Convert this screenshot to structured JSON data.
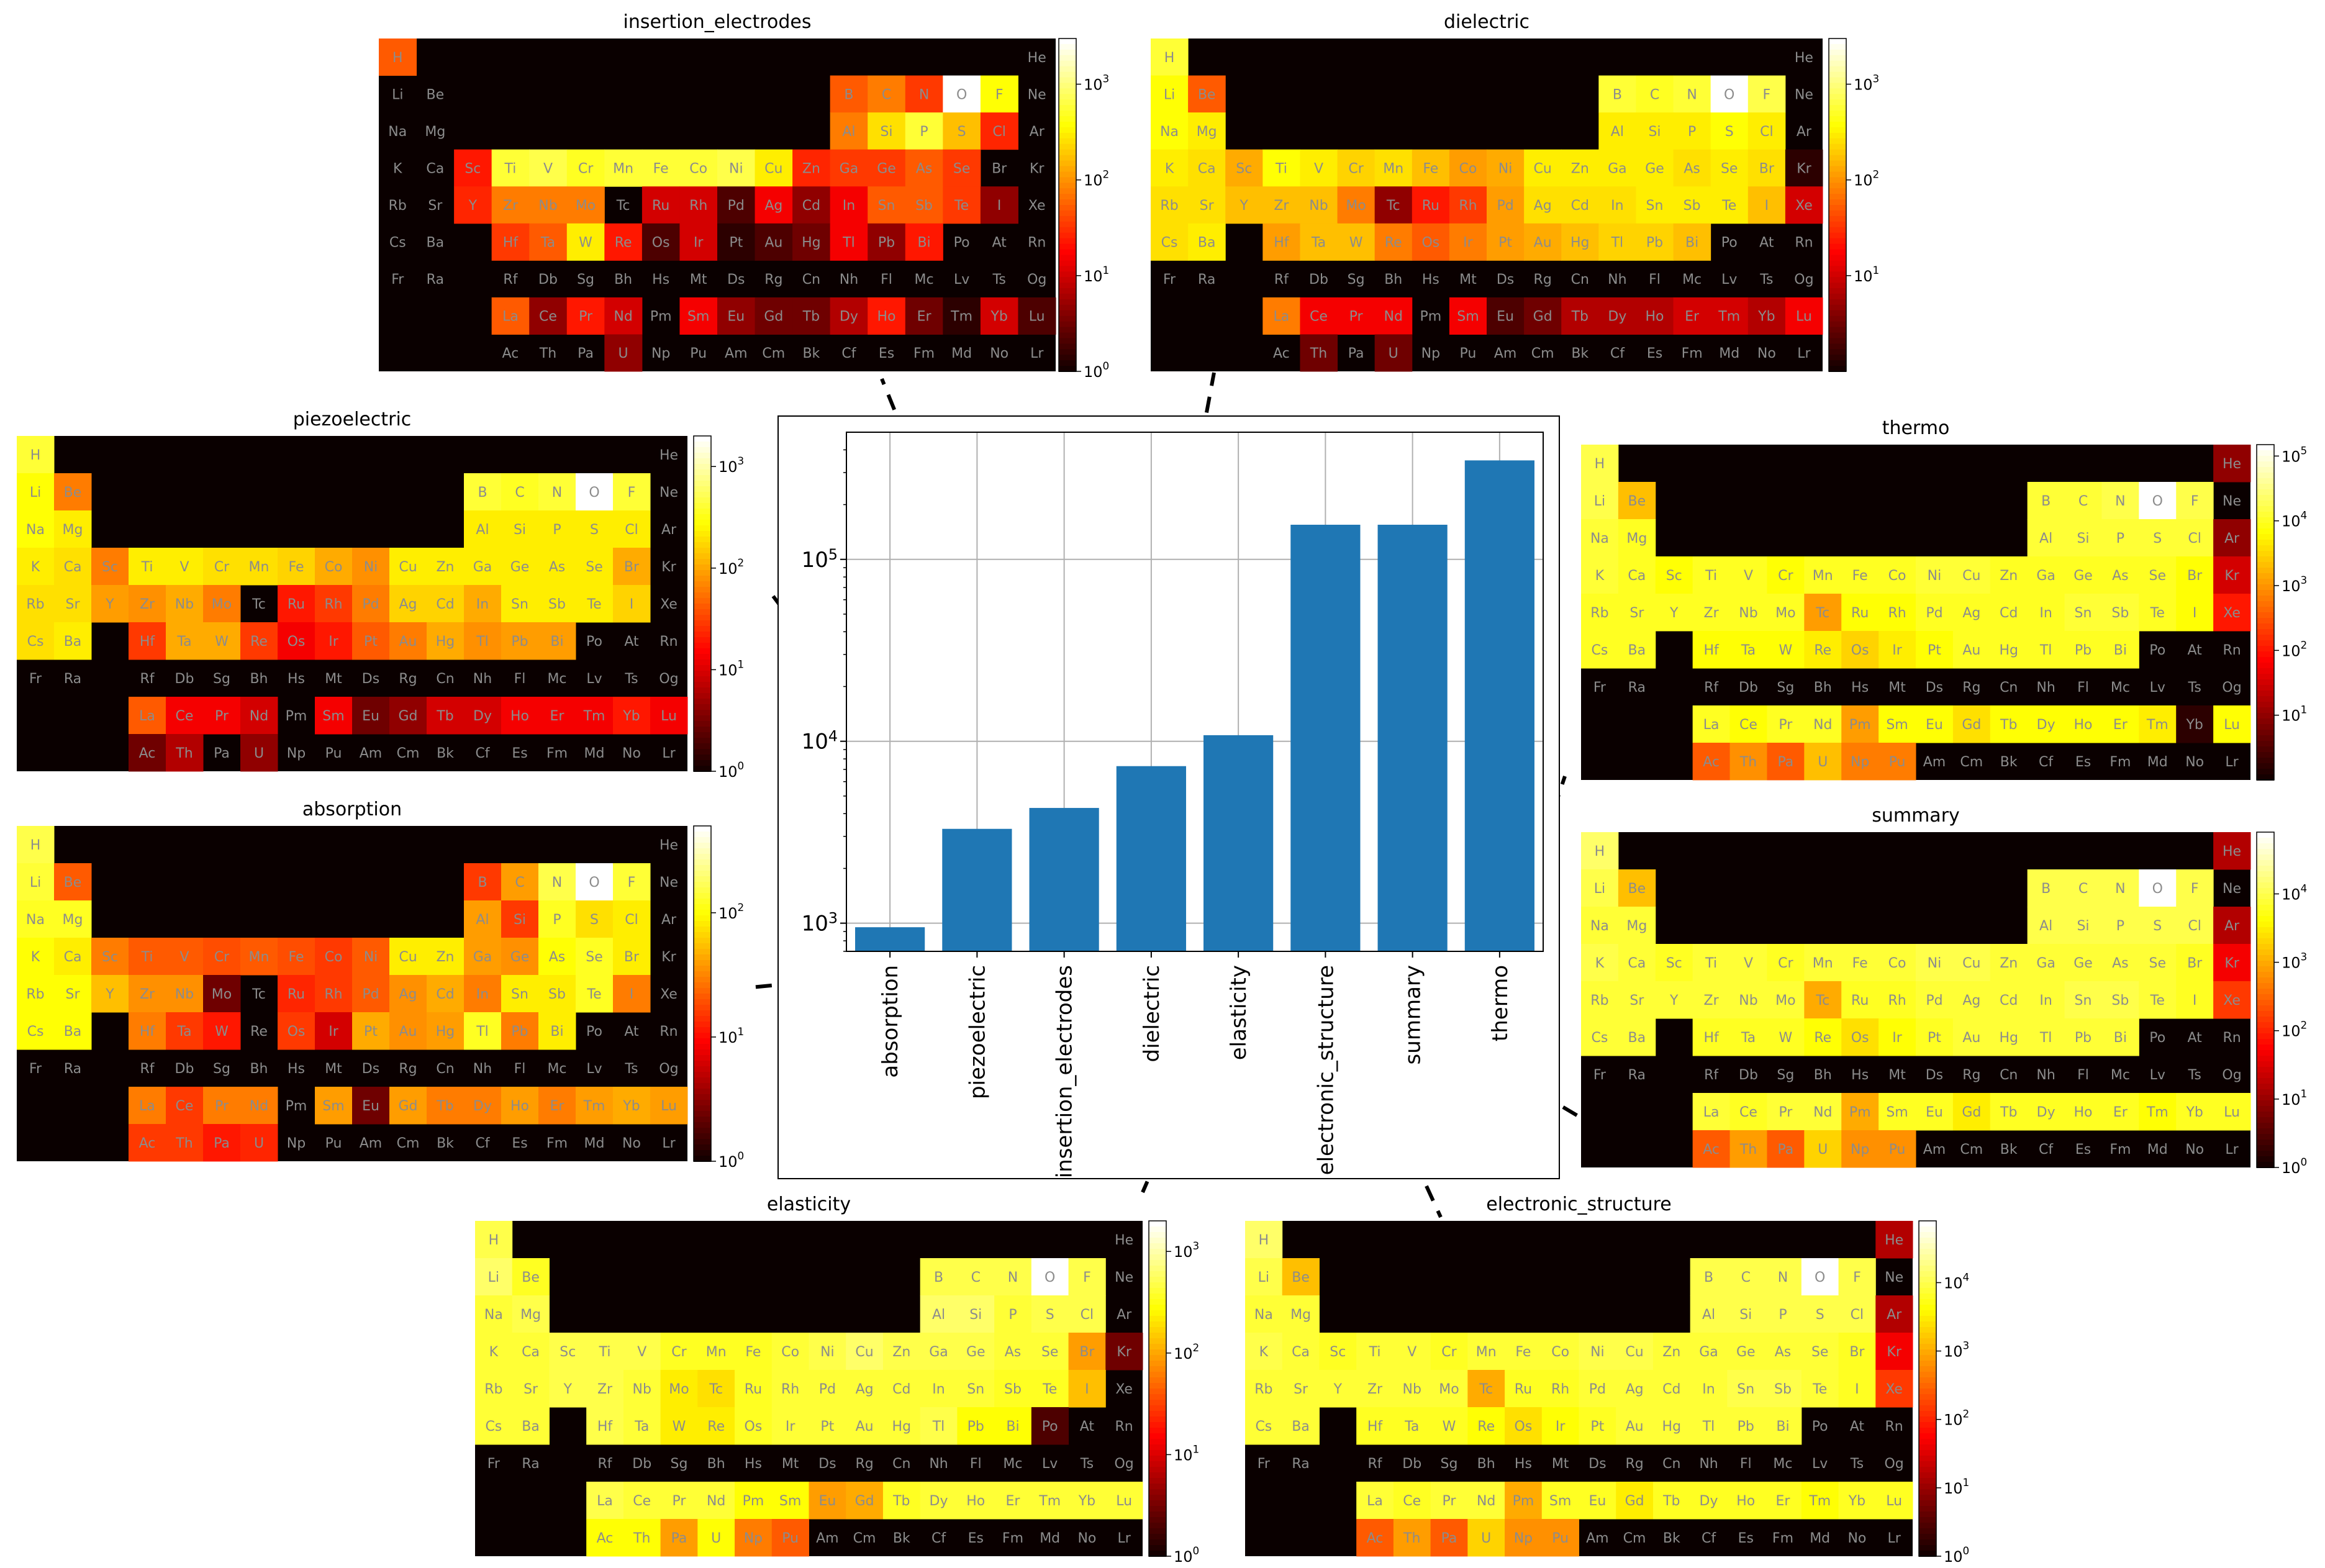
{
  "chart_data": [
    {
      "type": "bar",
      "yscale": "log",
      "grid": true,
      "categories": [
        "absorption",
        "piezoelectric",
        "insertion_electrodes",
        "dielectric",
        "elasticity",
        "electronic_structure",
        "summary",
        "thermo"
      ],
      "values": [
        950,
        3300,
        4300,
        7300,
        10800,
        155000,
        155000,
        350000
      ],
      "ylim": [
        700,
        500000
      ],
      "yticks": [
        {
          "value": 1000,
          "base": "10",
          "exp": "3"
        },
        {
          "value": 10000,
          "base": "10",
          "exp": "4"
        },
        {
          "value": 100000,
          "base": "10",
          "exp": "5"
        }
      ],
      "bar_color": "#1f77b4"
    },
    {
      "type": "heatmap",
      "title": "insertion_electrodes",
      "colormap": "hot",
      "scale": "log",
      "vmax": 3000,
      "colorbar_ticks": [
        {
          "base": "10",
          "exp": "0",
          "value": 1
        },
        {
          "base": "10",
          "exp": "1",
          "value": 10
        },
        {
          "base": "10",
          "exp": "2",
          "value": 100
        },
        {
          "base": "10",
          "exp": "3",
          "value": 1000
        }
      ],
      "values": {
        "H": 0.5,
        "Li": 0,
        "Be": 0,
        "B": 0.5,
        "C": 0.55,
        "N": 0.45,
        "O": 1,
        "F": 0.75,
        "Na": 0,
        "Mg": 0,
        "Al": 0.55,
        "Si": 0.7,
        "P": 0.8,
        "S": 0.65,
        "Cl": 0.42,
        "K": 0,
        "Ca": 0,
        "Sc": 0.4,
        "Ti": 0.8,
        "V": 0.82,
        "Cr": 0.78,
        "Mn": 0.8,
        "Fe": 0.8,
        "Co": 0.8,
        "Ni": 0.82,
        "Cu": 0.72,
        "Zn": 0.42,
        "Ga": 0.45,
        "Ge": 0.45,
        "As": 0.5,
        "Se": 0.45,
        "Br": 0,
        "Rb": 0,
        "Sr": 0,
        "Y": 0.42,
        "Zr": 0.55,
        "Nb": 0.55,
        "Mo": 0.55,
        "Tc": 0,
        "Ru": 0.3,
        "Rh": 0.3,
        "Pd": 0.1,
        "Ag": 0.35,
        "Cd": 0.2,
        "In": 0.35,
        "Sn": 0.5,
        "Sb": 0.5,
        "Te": 0.45,
        "I": 0.2,
        "Xe": 0,
        "Cs": 0,
        "Ba": 0,
        "Hf": 0.45,
        "Ta": 0.5,
        "W": 0.72,
        "Re": 0.4,
        "Os": 0.1,
        "Ir": 0.3,
        "Pt": 0.05,
        "Au": 0.1,
        "Hg": 0.15,
        "Tl": 0.35,
        "Pb": 0.2,
        "Bi": 0.4,
        "Po": 0,
        "At": 0,
        "Rn": 0,
        "La": 0.5,
        "Ce": 0.2,
        "Pr": 0.4,
        "Nd": 0.3,
        "Pm": 0,
        "Sm": 0.35,
        "Eu": 0.2,
        "Gd": 0.15,
        "Tb": 0.15,
        "Dy": 0.25,
        "Ho": 0.4,
        "Er": 0.15,
        "Tm": 0.05,
        "Yb": 0.3,
        "Lu": 0.1,
        "U": 0.2
      }
    },
    {
      "type": "heatmap",
      "title": "dielectric",
      "colormap": "hot",
      "scale": "log",
      "vmax": 3000,
      "colorbar_ticks": [
        {
          "base": "10",
          "exp": "1",
          "value": 10
        },
        {
          "base": "10",
          "exp": "2",
          "value": 100
        },
        {
          "base": "10",
          "exp": "3",
          "value": 1000
        }
      ],
      "values": {
        "H": 0.8,
        "Li": 0.75,
        "Be": 0.5,
        "B": 0.8,
        "C": 0.78,
        "N": 0.8,
        "O": 1,
        "F": 0.82,
        "Na": 0.75,
        "Mg": 0.72,
        "Al": 0.72,
        "Si": 0.72,
        "P": 0.72,
        "S": 0.75,
        "Cl": 0.72,
        "K": 0.72,
        "Ca": 0.7,
        "Sc": 0.62,
        "Ti": 0.75,
        "V": 0.72,
        "Cr": 0.68,
        "Mn": 0.7,
        "Fe": 0.65,
        "Co": 0.6,
        "Ni": 0.62,
        "Cu": 0.72,
        "Zn": 0.72,
        "Ga": 0.72,
        "Ge": 0.72,
        "As": 0.7,
        "Se": 0.72,
        "Br": 0.7,
        "Kr": 0.05,
        "Rb": 0.7,
        "Sr": 0.7,
        "Y": 0.65,
        "Zr": 0.65,
        "Nb": 0.65,
        "Mo": 0.55,
        "Tc": 0.2,
        "Ru": 0.4,
        "Rh": 0.45,
        "Pd": 0.6,
        "Ag": 0.7,
        "Cd": 0.7,
        "In": 0.7,
        "Sn": 0.72,
        "Sb": 0.72,
        "Te": 0.72,
        "I": 0.65,
        "Xe": 0.3,
        "Cs": 0.7,
        "Ba": 0.72,
        "Hf": 0.6,
        "Ta": 0.65,
        "W": 0.65,
        "Re": 0.55,
        "Os": 0.5,
        "Ir": 0.55,
        "Pt": 0.6,
        "Au": 0.62,
        "Hg": 0.65,
        "Tl": 0.68,
        "Pb": 0.68,
        "Bi": 0.65,
        "La": 0.55,
        "Ce": 0.35,
        "Pr": 0.35,
        "Nd": 0.35,
        "Sm": 0.35,
        "Eu": 0.1,
        "Gd": 0.15,
        "Tb": 0.25,
        "Dy": 0.25,
        "Ho": 0.25,
        "Er": 0.3,
        "Tm": 0.3,
        "Yb": 0.25,
        "Lu": 0.35,
        "Th": 0.15,
        "U": 0.15
      }
    },
    {
      "type": "heatmap",
      "title": "piezoelectric",
      "colormap": "hot",
      "scale": "log",
      "vmax": 2000,
      "colorbar_ticks": [
        {
          "base": "10",
          "exp": "0",
          "value": 1
        },
        {
          "base": "10",
          "exp": "1",
          "value": 10
        },
        {
          "base": "10",
          "exp": "2",
          "value": 100
        },
        {
          "base": "10",
          "exp": "3",
          "value": 1000
        }
      ],
      "values": {
        "H": 0.8,
        "Li": 0.75,
        "Be": 0.55,
        "B": 0.8,
        "C": 0.78,
        "N": 0.8,
        "O": 1,
        "F": 0.8,
        "Na": 0.75,
        "Mg": 0.72,
        "Al": 0.72,
        "Si": 0.72,
        "P": 0.72,
        "S": 0.72,
        "Cl": 0.72,
        "K": 0.72,
        "Ca": 0.7,
        "Sc": 0.55,
        "Ti": 0.72,
        "V": 0.72,
        "Cr": 0.7,
        "Mn": 0.7,
        "Fe": 0.68,
        "Co": 0.62,
        "Ni": 0.58,
        "Cu": 0.72,
        "Zn": 0.72,
        "Ga": 0.72,
        "Ge": 0.72,
        "As": 0.72,
        "Se": 0.72,
        "Br": 0.62,
        "Rb": 0.7,
        "Sr": 0.7,
        "Y": 0.6,
        "Zr": 0.58,
        "Nb": 0.62,
        "Mo": 0.55,
        "Tc": 0,
        "Ru": 0.4,
        "Rh": 0.45,
        "Pd": 0.55,
        "Ag": 0.68,
        "Cd": 0.68,
        "In": 0.62,
        "Sn": 0.72,
        "Sb": 0.72,
        "Te": 0.72,
        "I": 0.68,
        "Cs": 0.7,
        "Ba": 0.72,
        "Hf": 0.45,
        "Ta": 0.62,
        "W": 0.62,
        "Re": 0.45,
        "Os": 0.35,
        "Ir": 0.4,
        "Pt": 0.5,
        "Au": 0.55,
        "Hg": 0.62,
        "Tl": 0.58,
        "Pb": 0.6,
        "Bi": 0.6,
        "La": 0.5,
        "Ce": 0.35,
        "Pr": 0.35,
        "Nd": 0.3,
        "Sm": 0.35,
        "Eu": 0.15,
        "Gd": 0.2,
        "Tb": 0.3,
        "Dy": 0.3,
        "Ho": 0.35,
        "Er": 0.35,
        "Tm": 0.35,
        "Yb": 0.4,
        "Lu": 0.35,
        "Ac": 0.15,
        "Th": 0.25,
        "U": 0.2
      }
    },
    {
      "type": "heatmap",
      "title": "absorption",
      "colormap": "hot",
      "scale": "log",
      "vmax": 500,
      "colorbar_ticks": [
        {
          "base": "10",
          "exp": "0",
          "value": 1
        },
        {
          "base": "10",
          "exp": "1",
          "value": 10
        },
        {
          "base": "10",
          "exp": "2",
          "value": 100
        }
      ],
      "values": {
        "H": 0.82,
        "Li": 0.8,
        "Be": 0.5,
        "B": 0.45,
        "C": 0.6,
        "N": 0.82,
        "O": 1,
        "F": 0.8,
        "Na": 0.78,
        "Mg": 0.78,
        "Al": 0.6,
        "Si": 0.45,
        "P": 0.78,
        "S": 0.7,
        "Cl": 0.72,
        "K": 0.75,
        "Ca": 0.72,
        "Sc": 0.55,
        "Ti": 0.5,
        "V": 0.5,
        "Cr": 0.48,
        "Mn": 0.5,
        "Fe": 0.48,
        "Co": 0.45,
        "Ni": 0.5,
        "Cu": 0.72,
        "Zn": 0.72,
        "Ga": 0.6,
        "Ge": 0.58,
        "As": 0.75,
        "Se": 0.78,
        "Br": 0.72,
        "Kr": 0,
        "Rb": 0.75,
        "Sr": 0.75,
        "Y": 0.65,
        "Zr": 0.58,
        "Nb": 0.58,
        "Mo": 0.15,
        "Tc": 0,
        "Ru": 0.42,
        "Rh": 0.45,
        "Pd": 0.5,
        "Ag": 0.58,
        "Cd": 0.62,
        "In": 0.55,
        "Sn": 0.72,
        "Sb": 0.72,
        "Te": 0.78,
        "I": 0.55,
        "Cs": 0.75,
        "Ba": 0.75,
        "Hf": 0.55,
        "Ta": 0.45,
        "W": 0.4,
        "Re": 0,
        "Os": 0.45,
        "Ir": 0.3,
        "Pt": 0.62,
        "Au": 0.58,
        "Hg": 0.6,
        "Tl": 0.78,
        "Pb": 0.55,
        "Bi": 0.72,
        "La": 0.55,
        "Ce": 0.45,
        "Pr": 0.55,
        "Nd": 0.55,
        "Pm": 0,
        "Sm": 0.6,
        "Eu": 0.15,
        "Gd": 0.6,
        "Tb": 0.55,
        "Dy": 0.55,
        "Ho": 0.6,
        "Er": 0.55,
        "Tm": 0.6,
        "Yb": 0.62,
        "Lu": 0.6,
        "Ac": 0.45,
        "Th": 0.45,
        "Pa": 0.4,
        "U": 0.42
      }
    },
    {
      "type": "heatmap",
      "title": "thermo",
      "colormap": "hot",
      "scale": "log",
      "vmax": 150000,
      "colorbar_ticks": [
        {
          "base": "10",
          "exp": "1",
          "value": 10
        },
        {
          "base": "10",
          "exp": "2",
          "value": 100
        },
        {
          "base": "10",
          "exp": "3",
          "value": 1000
        },
        {
          "base": "10",
          "exp": "4",
          "value": 10000
        },
        {
          "base": "10",
          "exp": "5",
          "value": 100000
        }
      ],
      "values": {
        "H": 0.82,
        "He": 0.2,
        "Li": 0.82,
        "Be": 0.65,
        "B": 0.8,
        "C": 0.8,
        "N": 0.82,
        "O": 1,
        "F": 0.82,
        "Ne": 0,
        "Na": 0.8,
        "Mg": 0.78,
        "Al": 0.8,
        "Si": 0.8,
        "P": 0.8,
        "S": 0.8,
        "Cl": 0.8,
        "Ar": 0.2,
        "K": 0.8,
        "Ca": 0.78,
        "Sc": 0.75,
        "Ti": 0.78,
        "V": 0.78,
        "Cr": 0.75,
        "Mn": 0.78,
        "Fe": 0.78,
        "Co": 0.78,
        "Ni": 0.8,
        "Cu": 0.8,
        "Zn": 0.78,
        "Ga": 0.78,
        "Ge": 0.78,
        "As": 0.78,
        "Se": 0.78,
        "Br": 0.75,
        "Kr": 0.3,
        "Rb": 0.78,
        "Sr": 0.78,
        "Y": 0.78,
        "Zr": 0.78,
        "Nb": 0.78,
        "Mo": 0.78,
        "Tc": 0.6,
        "Ru": 0.75,
        "Rh": 0.75,
        "Pd": 0.78,
        "Ag": 0.78,
        "Cd": 0.78,
        "In": 0.78,
        "Sn": 0.8,
        "Sb": 0.8,
        "Te": 0.78,
        "I": 0.75,
        "Xe": 0.4,
        "Cs": 0.78,
        "Ba": 0.78,
        "Hf": 0.75,
        "Ta": 0.75,
        "W": 0.75,
        "Re": 0.72,
        "Os": 0.68,
        "Ir": 0.72,
        "Pt": 0.75,
        "Au": 0.78,
        "Hg": 0.78,
        "Tl": 0.78,
        "Pb": 0.78,
        "Bi": 0.78,
        "Po": 0,
        "At": 0,
        "Rn": 0,
        "La": 0.78,
        "Ce": 0.75,
        "Pr": 0.78,
        "Nd": 0.78,
        "Pm": 0.6,
        "Sm": 0.75,
        "Eu": 0.75,
        "Gd": 0.7,
        "Tb": 0.75,
        "Dy": 0.75,
        "Ho": 0.75,
        "Er": 0.75,
        "Tm": 0.72,
        "Yb": 0.05,
        "Lu": 0.75,
        "Ac": 0.5,
        "Th": 0.58,
        "Pa": 0.5,
        "U": 0.65,
        "Np": 0.55,
        "Pu": 0.55,
        "Am": 0,
        "Cm": 0,
        "Bk": 0,
        "Cf": 0,
        "Es": 0,
        "Fm": 0,
        "Md": 0,
        "No": 0,
        "Lr": 0
      }
    },
    {
      "type": "heatmap",
      "title": "summary",
      "colormap": "hot",
      "scale": "log",
      "vmax": 80000,
      "colorbar_ticks": [
        {
          "base": "10",
          "exp": "0",
          "value": 1
        },
        {
          "base": "10",
          "exp": "1",
          "value": 10
        },
        {
          "base": "10",
          "exp": "2",
          "value": 100
        },
        {
          "base": "10",
          "exp": "3",
          "value": 1000
        },
        {
          "base": "10",
          "exp": "4",
          "value": 10000
        }
      ],
      "values": {
        "H": 0.85,
        "He": 0.25,
        "Li": 0.82,
        "Be": 0.65,
        "B": 0.82,
        "C": 0.82,
        "N": 0.82,
        "O": 1,
        "F": 0.82,
        "Ne": 0,
        "Na": 0.8,
        "Mg": 0.8,
        "Al": 0.82,
        "Si": 0.82,
        "P": 0.82,
        "S": 0.82,
        "Cl": 0.82,
        "Ar": 0.25,
        "K": 0.82,
        "Ca": 0.8,
        "Sc": 0.78,
        "Ti": 0.8,
        "V": 0.8,
        "Cr": 0.78,
        "Mn": 0.8,
        "Fe": 0.8,
        "Co": 0.8,
        "Ni": 0.82,
        "Cu": 0.82,
        "Zn": 0.8,
        "Ga": 0.8,
        "Ge": 0.8,
        "As": 0.8,
        "Se": 0.8,
        "Br": 0.78,
        "Kr": 0.35,
        "Rb": 0.8,
        "Sr": 0.8,
        "Y": 0.8,
        "Zr": 0.8,
        "Nb": 0.8,
        "Mo": 0.8,
        "Tc": 0.62,
        "Ru": 0.78,
        "Rh": 0.78,
        "Pd": 0.8,
        "Ag": 0.8,
        "Cd": 0.8,
        "In": 0.8,
        "Sn": 0.82,
        "Sb": 0.82,
        "Te": 0.8,
        "I": 0.78,
        "Xe": 0.45,
        "Cs": 0.8,
        "Ba": 0.8,
        "Hf": 0.78,
        "Ta": 0.78,
        "W": 0.78,
        "Re": 0.75,
        "Os": 0.7,
        "Ir": 0.75,
        "Pt": 0.78,
        "Au": 0.8,
        "Hg": 0.8,
        "Tl": 0.8,
        "Pb": 0.8,
        "Bi": 0.8,
        "Po": 0,
        "At": 0,
        "Rn": 0,
        "La": 0.8,
        "Ce": 0.78,
        "Pr": 0.8,
        "Nd": 0.8,
        "Pm": 0.62,
        "Sm": 0.78,
        "Eu": 0.78,
        "Gd": 0.72,
        "Tb": 0.78,
        "Dy": 0.78,
        "Ho": 0.78,
        "Er": 0.78,
        "Tm": 0.75,
        "Yb": 0.78,
        "Lu": 0.78,
        "Ac": 0.5,
        "Th": 0.6,
        "Pa": 0.5,
        "U": 0.68,
        "Np": 0.58,
        "Pu": 0.58,
        "Am": 0,
        "Cm": 0,
        "Bk": 0,
        "Cf": 0,
        "Es": 0,
        "Fm": 0,
        "Md": 0,
        "No": 0,
        "Lr": 0
      }
    },
    {
      "type": "heatmap",
      "title": "elasticity",
      "colormap": "hot",
      "scale": "log",
      "vmax": 2000,
      "colorbar_ticks": [
        {
          "base": "10",
          "exp": "0",
          "value": 1
        },
        {
          "base": "10",
          "exp": "1",
          "value": 10
        },
        {
          "base": "10",
          "exp": "2",
          "value": 100
        },
        {
          "base": "10",
          "exp": "3",
          "value": 1000
        }
      ],
      "values": {
        "H": 0.82,
        "He": 0,
        "Li": 0.85,
        "Be": 0.78,
        "B": 0.82,
        "C": 0.82,
        "N": 0.82,
        "O": 1,
        "F": 0.82,
        "Ne": 0,
        "Na": 0.8,
        "Mg": 0.82,
        "Al": 0.85,
        "Si": 0.85,
        "P": 0.8,
        "S": 0.82,
        "Cl": 0.82,
        "Ar": 0,
        "K": 0.8,
        "Ca": 0.8,
        "Sc": 0.82,
        "Ti": 0.82,
        "V": 0.82,
        "Cr": 0.78,
        "Mn": 0.78,
        "Fe": 0.78,
        "Co": 0.8,
        "Ni": 0.82,
        "Cu": 0.85,
        "Zn": 0.82,
        "Ga": 0.82,
        "Ge": 0.82,
        "As": 0.8,
        "Se": 0.8,
        "Br": 0.6,
        "Kr": 0.15,
        "Rb": 0.8,
        "Sr": 0.8,
        "Y": 0.82,
        "Zr": 0.82,
        "Nb": 0.8,
        "Mo": 0.72,
        "Tc": 0.7,
        "Ru": 0.78,
        "Rh": 0.8,
        "Pd": 0.8,
        "Ag": 0.8,
        "Cd": 0.8,
        "In": 0.8,
        "Sn": 0.8,
        "Sb": 0.78,
        "Te": 0.78,
        "I": 0.65,
        "Xe": 0,
        "Cs": 0.8,
        "Ba": 0.8,
        "Hf": 0.82,
        "Ta": 0.8,
        "W": 0.72,
        "Re": 0.72,
        "Os": 0.78,
        "Ir": 0.8,
        "Pt": 0.8,
        "Au": 0.8,
        "Hg": 0.8,
        "Tl": 0.82,
        "Pb": 0.75,
        "Bi": 0.75,
        "Po": 0.1,
        "At": 0,
        "Rn": 0,
        "La": 0.82,
        "Ce": 0.8,
        "Pr": 0.8,
        "Nd": 0.8,
        "Pm": 0.75,
        "Sm": 0.75,
        "Eu": 0.6,
        "Gd": 0.62,
        "Tb": 0.78,
        "Dy": 0.8,
        "Ho": 0.8,
        "Er": 0.8,
        "Tm": 0.8,
        "Yb": 0.8,
        "Lu": 0.8,
        "Ac": 0.75,
        "Th": 0.75,
        "Pa": 0.6,
        "U": 0.75,
        "Np": 0.55,
        "Pu": 0.5,
        "Am": 0,
        "Cm": 0,
        "Bk": 0,
        "Cf": 0,
        "Es": 0,
        "Fm": 0,
        "Md": 0,
        "No": 0,
        "Lr": 0
      }
    },
    {
      "type": "heatmap",
      "title": "electronic_structure",
      "colormap": "hot",
      "scale": "log",
      "vmax": 80000,
      "colorbar_ticks": [
        {
          "base": "10",
          "exp": "0",
          "value": 1
        },
        {
          "base": "10",
          "exp": "1",
          "value": 10
        },
        {
          "base": "10",
          "exp": "2",
          "value": 100
        },
        {
          "base": "10",
          "exp": "3",
          "value": 1000
        },
        {
          "base": "10",
          "exp": "4",
          "value": 10000
        }
      ],
      "values": {
        "H": 0.85,
        "He": 0.25,
        "Li": 0.82,
        "Be": 0.65,
        "B": 0.82,
        "C": 0.82,
        "N": 0.82,
        "O": 1,
        "F": 0.82,
        "Ne": 0,
        "Na": 0.8,
        "Mg": 0.8,
        "Al": 0.82,
        "Si": 0.82,
        "P": 0.82,
        "S": 0.82,
        "Cl": 0.82,
        "Ar": 0.25,
        "K": 0.82,
        "Ca": 0.8,
        "Sc": 0.78,
        "Ti": 0.8,
        "V": 0.8,
        "Cr": 0.78,
        "Mn": 0.8,
        "Fe": 0.8,
        "Co": 0.8,
        "Ni": 0.82,
        "Cu": 0.82,
        "Zn": 0.8,
        "Ga": 0.8,
        "Ge": 0.8,
        "As": 0.8,
        "Se": 0.8,
        "Br": 0.78,
        "Kr": 0.35,
        "Rb": 0.8,
        "Sr": 0.8,
        "Y": 0.8,
        "Zr": 0.8,
        "Nb": 0.8,
        "Mo": 0.8,
        "Tc": 0.62,
        "Ru": 0.78,
        "Rh": 0.78,
        "Pd": 0.8,
        "Ag": 0.8,
        "Cd": 0.8,
        "In": 0.8,
        "Sn": 0.82,
        "Sb": 0.82,
        "Te": 0.8,
        "I": 0.78,
        "Xe": 0.45,
        "Cs": 0.8,
        "Ba": 0.8,
        "Hf": 0.78,
        "Ta": 0.78,
        "W": 0.78,
        "Re": 0.75,
        "Os": 0.7,
        "Ir": 0.75,
        "Pt": 0.78,
        "Au": 0.8,
        "Hg": 0.8,
        "Tl": 0.8,
        "Pb": 0.8,
        "Bi": 0.8,
        "Po": 0,
        "At": 0,
        "Rn": 0,
        "La": 0.8,
        "Ce": 0.78,
        "Pr": 0.8,
        "Nd": 0.8,
        "Pm": 0.62,
        "Sm": 0.78,
        "Eu": 0.78,
        "Gd": 0.72,
        "Tb": 0.78,
        "Dy": 0.78,
        "Ho": 0.78,
        "Er": 0.78,
        "Tm": 0.75,
        "Yb": 0.78,
        "Lu": 0.78,
        "Ac": 0.5,
        "Th": 0.6,
        "Pa": 0.5,
        "U": 0.68,
        "Np": 0.58,
        "Pu": 0.58,
        "Am": 0,
        "Cm": 0,
        "Bk": 0,
        "Cf": 0,
        "Es": 0,
        "Fm": 0,
        "Md": 0,
        "No": 0,
        "Lr": 0
      }
    }
  ]
}
